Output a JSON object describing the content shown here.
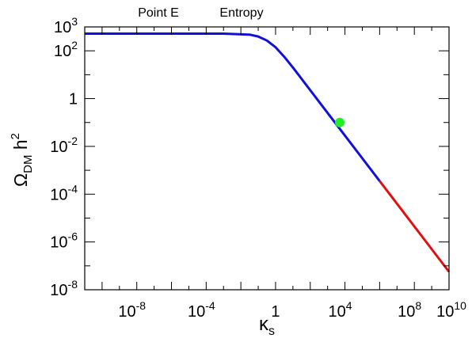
{
  "chart_data": {
    "type": "line",
    "title_left": "Point E",
    "title_right": "Entropy",
    "xlabel": {
      "main": "κ",
      "sub": "s"
    },
    "ylabel": {
      "main": "Ω",
      "sub": "DM",
      "tail": " h",
      "sup": "2"
    },
    "x_scale": "log",
    "y_scale": "log",
    "xlim_log10": [
      -11,
      10
    ],
    "ylim_log10": [
      -8,
      3
    ],
    "grid": false,
    "x_ticks": [
      {
        "base": "10",
        "exp": "-8",
        "value_log10": -8
      },
      {
        "base": "10",
        "exp": "-4",
        "value_log10": -4
      },
      {
        "base": "1",
        "exp": "",
        "value_log10": 0
      },
      {
        "base": "10",
        "exp": "4",
        "value_log10": 4
      },
      {
        "base": "10",
        "exp": "8",
        "value_log10": 8
      },
      {
        "base": "10",
        "exp": "10",
        "value_log10": 10
      }
    ],
    "y_ticks": [
      {
        "base": "10",
        "exp": "3",
        "value_log10": 3
      },
      {
        "base": "10",
        "exp": "2",
        "value_log10": 2
      },
      {
        "base": "1",
        "exp": "",
        "value_log10": 0
      },
      {
        "base": "10",
        "exp": "-2",
        "value_log10": -2
      },
      {
        "base": "10",
        "exp": "-4",
        "value_log10": -4
      },
      {
        "base": "10",
        "exp": "-6",
        "value_log10": -6
      },
      {
        "base": "10",
        "exp": "-8",
        "value_log10": -8
      }
    ],
    "series": [
      {
        "color": "#1010d8",
        "points_log10": [
          [
            -11,
            2.72
          ],
          [
            -3,
            2.72
          ],
          [
            -1.5,
            2.68
          ],
          [
            -1,
            2.6
          ],
          [
            -0.5,
            2.43
          ],
          [
            0,
            2.15
          ],
          [
            0.5,
            1.75
          ],
          [
            1,
            1.3
          ],
          [
            2,
            0.35
          ],
          [
            3,
            -0.6
          ],
          [
            4,
            -1.55
          ],
          [
            5,
            -2.5
          ],
          [
            6,
            -3.45
          ]
        ]
      },
      {
        "color": "#e01010",
        "points_log10": [
          [
            6,
            -3.45
          ],
          [
            8,
            -5.35
          ],
          [
            10,
            -7.25
          ]
        ]
      }
    ],
    "marker": {
      "x_log10": 3.7,
      "y_log10": -1.0,
      "color": "#22ee22"
    }
  }
}
